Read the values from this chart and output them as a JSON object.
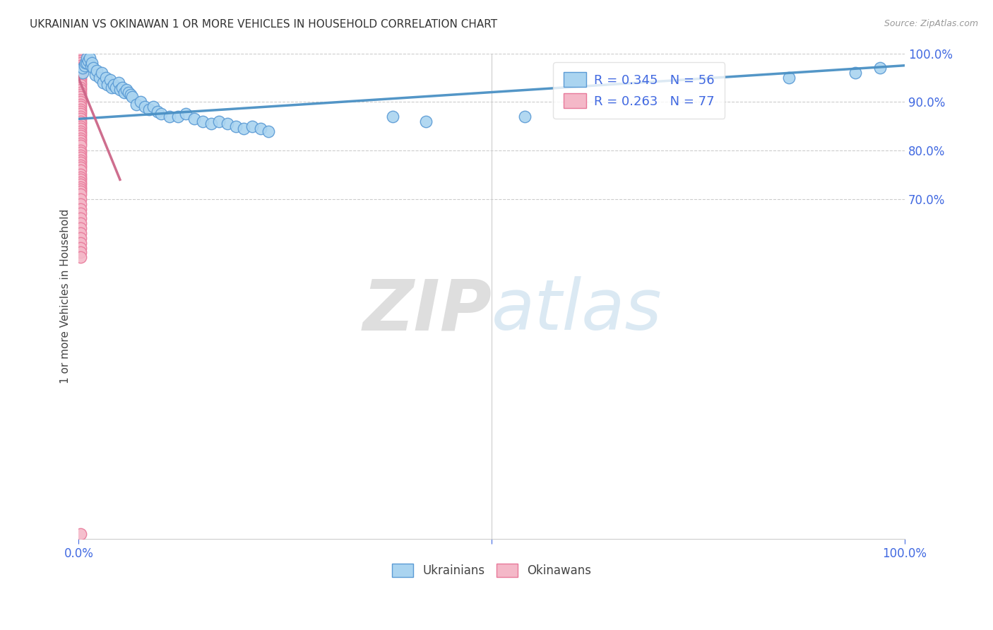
{
  "title": "UKRAINIAN VS OKINAWAN 1 OR MORE VEHICLES IN HOUSEHOLD CORRELATION CHART",
  "source": "Source: ZipAtlas.com",
  "ylabel": "1 or more Vehicles in Household",
  "legend_ukrainians": "Ukrainians",
  "legend_okinawans": "Okinawans",
  "r_ukrainian": 0.345,
  "n_ukrainian": 56,
  "r_okinawan": 0.263,
  "n_okinawan": 77,
  "ukrainian_color": "#aad4f0",
  "ukrainian_edge": "#5b9bd5",
  "okinawan_color": "#f4b8c8",
  "okinawan_edge": "#e8799a",
  "trend_color_uk": "#4a90c4",
  "trend_color_ok": "#cc6688",
  "background_color": "#ffffff",
  "watermark_color": "#d8eaf8",
  "xmin": 0.0,
  "xmax": 1.0,
  "ymin": 0.0,
  "ymax": 1.0,
  "ukrainian_x": [
    0.005,
    0.005,
    0.007,
    0.008,
    0.01,
    0.01,
    0.012,
    0.013,
    0.015,
    0.016,
    0.018,
    0.02,
    0.022,
    0.025,
    0.028,
    0.03,
    0.033,
    0.035,
    0.038,
    0.04,
    0.042,
    0.045,
    0.048,
    0.05,
    0.053,
    0.055,
    0.058,
    0.06,
    0.063,
    0.065,
    0.07,
    0.075,
    0.08,
    0.085,
    0.09,
    0.095,
    0.1,
    0.11,
    0.12,
    0.13,
    0.14,
    0.15,
    0.16,
    0.17,
    0.18,
    0.19,
    0.2,
    0.21,
    0.22,
    0.23,
    0.38,
    0.42,
    0.54,
    0.86,
    0.94,
    0.97
  ],
  "ukrainian_y": [
    0.96,
    0.97,
    0.975,
    0.98,
    0.98,
    0.99,
    0.985,
    0.99,
    0.975,
    0.98,
    0.97,
    0.955,
    0.965,
    0.95,
    0.96,
    0.94,
    0.95,
    0.935,
    0.945,
    0.93,
    0.935,
    0.93,
    0.94,
    0.925,
    0.93,
    0.92,
    0.925,
    0.92,
    0.915,
    0.91,
    0.895,
    0.9,
    0.89,
    0.885,
    0.89,
    0.88,
    0.875,
    0.87,
    0.87,
    0.875,
    0.865,
    0.86,
    0.855,
    0.86,
    0.855,
    0.85,
    0.845,
    0.85,
    0.845,
    0.84,
    0.87,
    0.86,
    0.87,
    0.95,
    0.96,
    0.97
  ],
  "okinawan_x": [
    0.002,
    0.002,
    0.002,
    0.002,
    0.002,
    0.002,
    0.002,
    0.002,
    0.002,
    0.002,
    0.002,
    0.002,
    0.002,
    0.002,
    0.002,
    0.002,
    0.002,
    0.002,
    0.002,
    0.002,
    0.002,
    0.002,
    0.002,
    0.002,
    0.002,
    0.002,
    0.002,
    0.002,
    0.002,
    0.002,
    0.002,
    0.002,
    0.002,
    0.002,
    0.002,
    0.002,
    0.002,
    0.002,
    0.002,
    0.002,
    0.002,
    0.002,
    0.002,
    0.002,
    0.002,
    0.002,
    0.002,
    0.002,
    0.002,
    0.002,
    0.002,
    0.002,
    0.002,
    0.002,
    0.002,
    0.002,
    0.002,
    0.002,
    0.002,
    0.002,
    0.002,
    0.002,
    0.002,
    0.002,
    0.002,
    0.002,
    0.002,
    0.002,
    0.002,
    0.002,
    0.002,
    0.002,
    0.002,
    0.002,
    0.002,
    0.002,
    0.002
  ],
  "okinawan_y": [
    1.0,
    1.0,
    1.0,
    1.0,
    1.0,
    1.0,
    1.0,
    0.995,
    0.99,
    0.985,
    0.98,
    0.975,
    0.97,
    0.965,
    0.96,
    0.955,
    0.95,
    0.945,
    0.94,
    0.935,
    0.93,
    0.925,
    0.92,
    0.915,
    0.91,
    0.905,
    0.9,
    0.895,
    0.89,
    0.885,
    0.88,
    0.875,
    0.87,
    0.865,
    0.86,
    0.855,
    0.85,
    0.845,
    0.84,
    0.835,
    0.83,
    0.825,
    0.82,
    0.815,
    0.81,
    0.8,
    0.795,
    0.79,
    0.785,
    0.78,
    0.775,
    0.77,
    0.765,
    0.76,
    0.75,
    0.745,
    0.74,
    0.735,
    0.73,
    0.725,
    0.72,
    0.715,
    0.71,
    0.7,
    0.69,
    0.68,
    0.67,
    0.66,
    0.65,
    0.64,
    0.63,
    0.62,
    0.61,
    0.6,
    0.59,
    0.58,
    0.01
  ],
  "trend_x_start": 0.0,
  "trend_x_end": 1.0,
  "trend_uk_y_start": 0.865,
  "trend_uk_y_end": 0.975
}
